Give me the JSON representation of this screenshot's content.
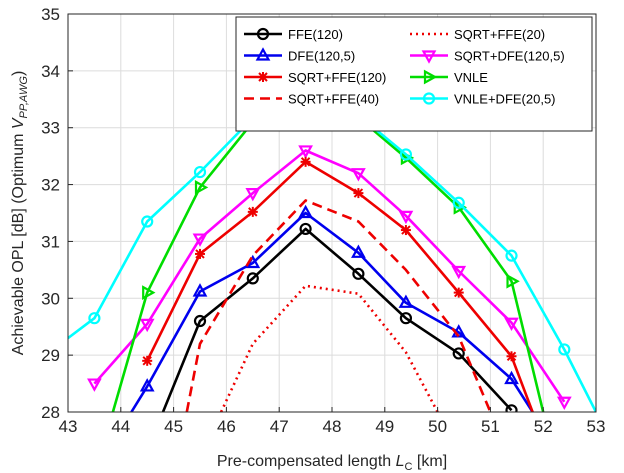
{
  "chart_data": {
    "type": "line",
    "xlabel": "Pre-compensated length L_C [km]",
    "ylabel": "Achievable OPL [dB] (Optimum V_PP,AWG)",
    "xlim": [
      43,
      53
    ],
    "ylim": [
      28,
      35
    ],
    "xticks": [
      "43",
      "44",
      "45",
      "46",
      "47",
      "48",
      "49",
      "50",
      "51",
      "52",
      "53"
    ],
    "yticks": [
      "28",
      "29",
      "30",
      "31",
      "32",
      "33",
      "34",
      "35"
    ],
    "grid": true,
    "legend_placement": "top-right",
    "legend_columns": 2,
    "series": [
      {
        "name": "FFE(120)",
        "color": "#000000",
        "dash": "solid",
        "marker": "circle",
        "x": [
          44.8,
          45.5,
          46.5,
          47.5,
          48.5,
          49.4,
          50.4,
          51.4
        ],
        "y": [
          28.0,
          29.6,
          30.35,
          31.22,
          30.43,
          29.65,
          29.03,
          28.03
        ]
      },
      {
        "name": "SQRT+FFE(20)",
        "color": "#ee0000",
        "dash": "dotted",
        "marker": "none",
        "x": [
          45.9,
          46.5,
          47.5,
          48.5,
          49.4,
          50.0
        ],
        "y": [
          28.0,
          29.2,
          30.22,
          30.08,
          29.05,
          28.0
        ]
      },
      {
        "name": "DFE(120,5)",
        "color": "#0000ee",
        "dash": "solid",
        "marker": "triangle-up",
        "x": [
          44.2,
          44.5,
          45.5,
          46.5,
          47.5,
          48.5,
          49.4,
          50.4,
          51.4,
          51.8
        ],
        "y": [
          28.0,
          28.45,
          30.12,
          30.62,
          31.5,
          30.8,
          29.92,
          29.4,
          28.58,
          28.0
        ]
      },
      {
        "name": "SQRT+DFE(120,5)",
        "color": "#ff00ff",
        "dash": "solid",
        "marker": "triangle-down",
        "x": [
          43.5,
          44.5,
          45.5,
          46.5,
          47.5,
          48.5,
          49.4,
          50.4,
          51.4,
          52.4
        ],
        "y": [
          28.5,
          29.55,
          31.05,
          31.85,
          32.6,
          32.2,
          31.45,
          30.48,
          29.57,
          28.18
        ]
      },
      {
        "name": "SQRT+FFE(120)",
        "color": "#ee0000",
        "dash": "solid",
        "marker": "star",
        "x": [
          44.5,
          45.5,
          46.5,
          47.5,
          48.5,
          49.4,
          50.4,
          51.4,
          51.8
        ],
        "y": [
          28.9,
          30.78,
          31.52,
          32.4,
          31.85,
          31.2,
          30.1,
          28.98,
          28.0
        ]
      },
      {
        "name": "VNLE",
        "color": "#00dd00",
        "dash": "solid",
        "marker": "triangle-right",
        "x": [
          43.85,
          44.5,
          45.5,
          46.5,
          47.5,
          48.5,
          49.4,
          50.4,
          51.4,
          52.0
        ],
        "y": [
          28.0,
          30.1,
          31.95,
          33.1,
          33.32,
          33.18,
          32.47,
          31.6,
          30.3,
          28.0
        ]
      },
      {
        "name": "SQRT+FFE(40)",
        "color": "#ee0000",
        "dash": "dashed",
        "marker": "none",
        "x": [
          45.25,
          45.5,
          46.5,
          47.5,
          48.5,
          49.4,
          50.4,
          51.0
        ],
        "y": [
          28.0,
          29.2,
          30.75,
          31.72,
          31.35,
          30.5,
          29.33,
          28.0
        ]
      },
      {
        "name": "VNLE+DFE(20,5)",
        "color": "#00ffff",
        "dash": "solid",
        "marker": "circle-cyan",
        "x": [
          43.0,
          43.5,
          44.5,
          45.5,
          46.5,
          47.5,
          48.5,
          49.4,
          50.4,
          51.4,
          52.4,
          53.0
        ],
        "y": [
          29.3,
          29.65,
          31.35,
          32.22,
          33.17,
          33.38,
          33.22,
          32.53,
          31.68,
          30.75,
          29.1,
          28.0
        ]
      }
    ]
  }
}
